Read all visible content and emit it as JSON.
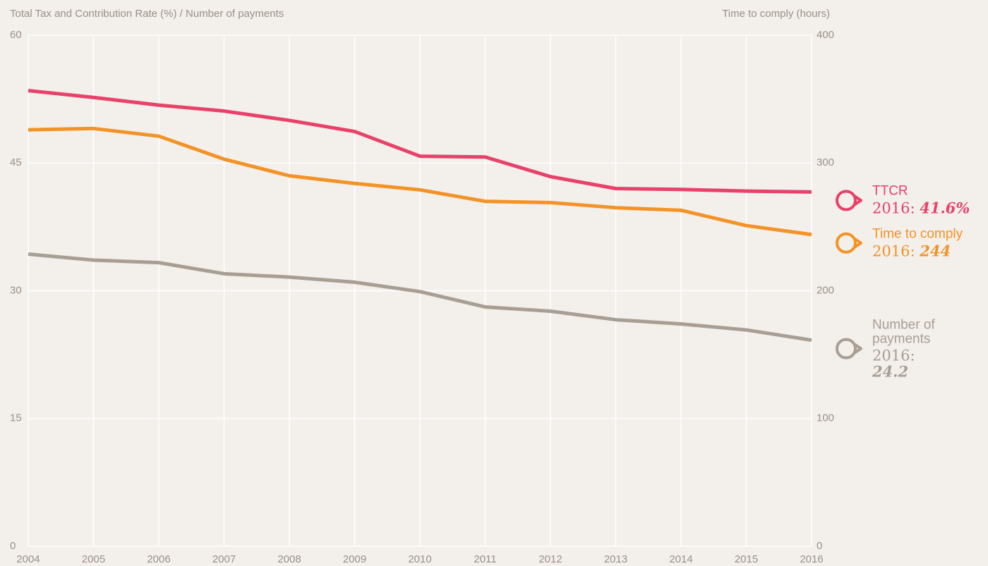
{
  "chart_data": {
    "type": "line",
    "ylabel": "Total Tax and Contribution Rate (%) / Number of payments",
    "y2label": "Time to comply (hours)",
    "x": [
      2004,
      2005,
      2006,
      2007,
      2008,
      2009,
      2010,
      2011,
      2012,
      2013,
      2014,
      2015,
      2016
    ],
    "xlim": [
      2004,
      2016
    ],
    "xticks": [
      2004,
      2005,
      2006,
      2007,
      2008,
      2009,
      2010,
      2011,
      2012,
      2013,
      2014,
      2015,
      2016
    ],
    "ylim": [
      0,
      60
    ],
    "yticks": [
      0,
      15,
      30,
      45,
      60
    ],
    "y2lim": [
      0,
      400
    ],
    "y2ticks": [
      0,
      100,
      200,
      300,
      400
    ],
    "grid": true,
    "series": [
      {
        "name": "TTCR",
        "color": "#e8416a",
        "axis": "y",
        "label_year": "2016:",
        "label_value": "41.6%",
        "values": [
          53.5,
          52.7,
          51.8,
          51.1,
          50.0,
          48.7,
          45.8,
          45.7,
          43.4,
          42.0,
          41.9,
          41.7,
          41.6
        ]
      },
      {
        "name": "Time to comply",
        "color": "#f39325",
        "axis": "y2",
        "label_year": "2016:",
        "label_value": "244",
        "values": [
          326,
          327,
          321,
          303,
          290,
          284,
          279,
          270,
          269,
          265,
          263,
          251,
          244
        ]
      },
      {
        "name": "Number of payments",
        "color": "#a89e94",
        "axis": "y",
        "label_year": "2016:",
        "label_value": "24.2",
        "values": [
          34.3,
          33.6,
          33.3,
          32.0,
          31.6,
          31.0,
          29.9,
          28.1,
          27.6,
          26.6,
          26.1,
          25.4,
          24.2
        ]
      }
    ]
  }
}
